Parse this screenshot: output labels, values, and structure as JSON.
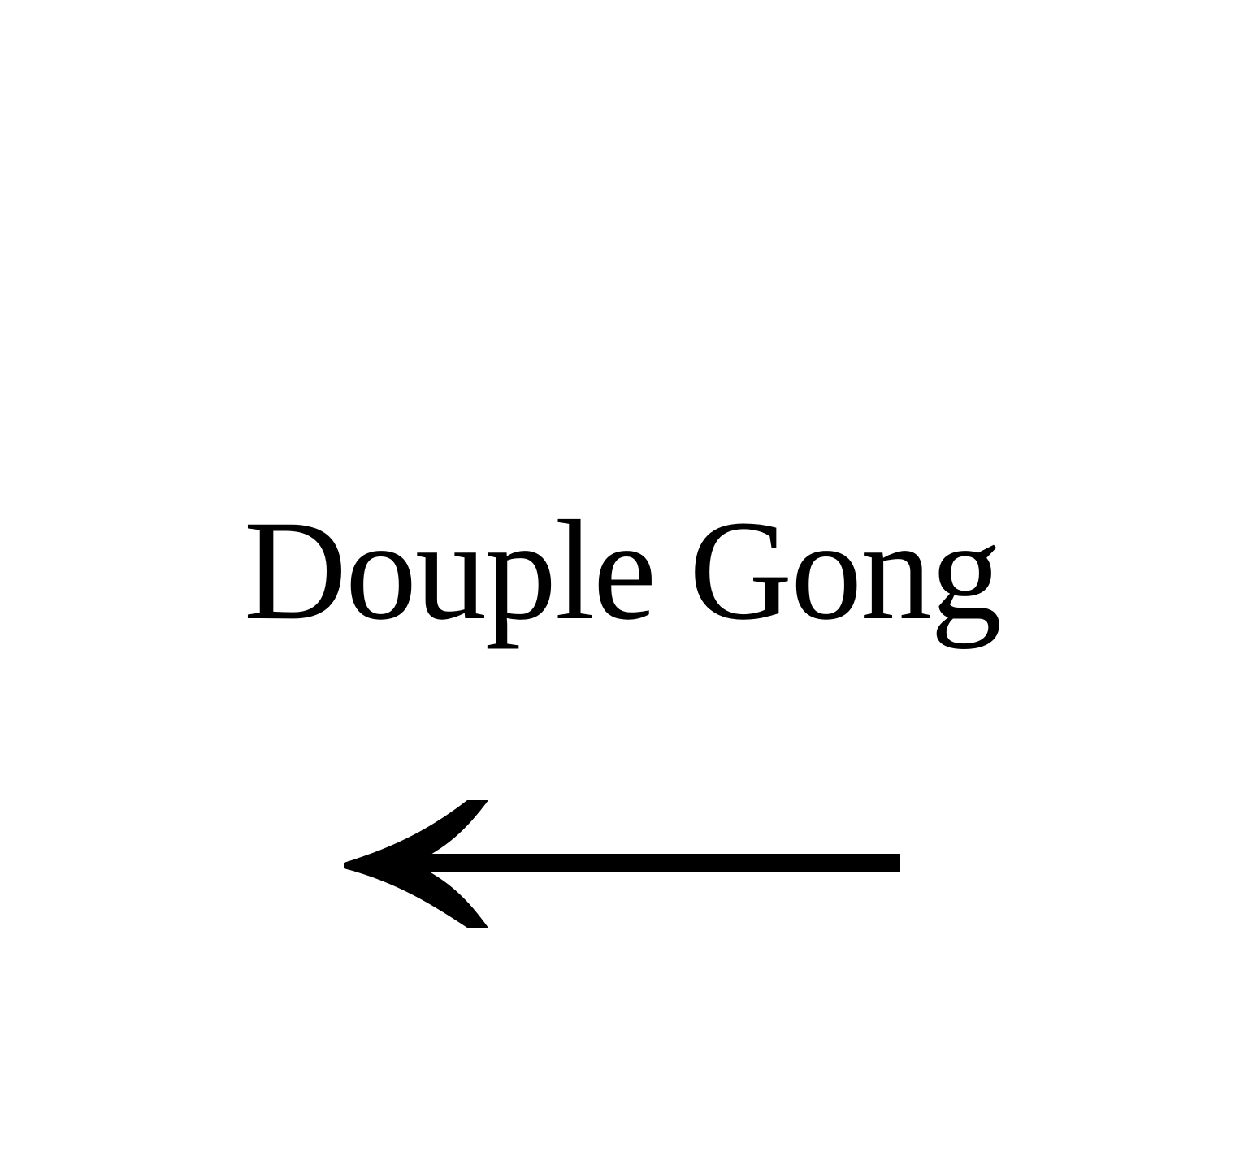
{
  "sign": {
    "label": "Douple Gong",
    "direction": "left",
    "arrow_icon": "arrow-left-icon",
    "text_color": "#000000",
    "background_color": "#ffffff"
  }
}
